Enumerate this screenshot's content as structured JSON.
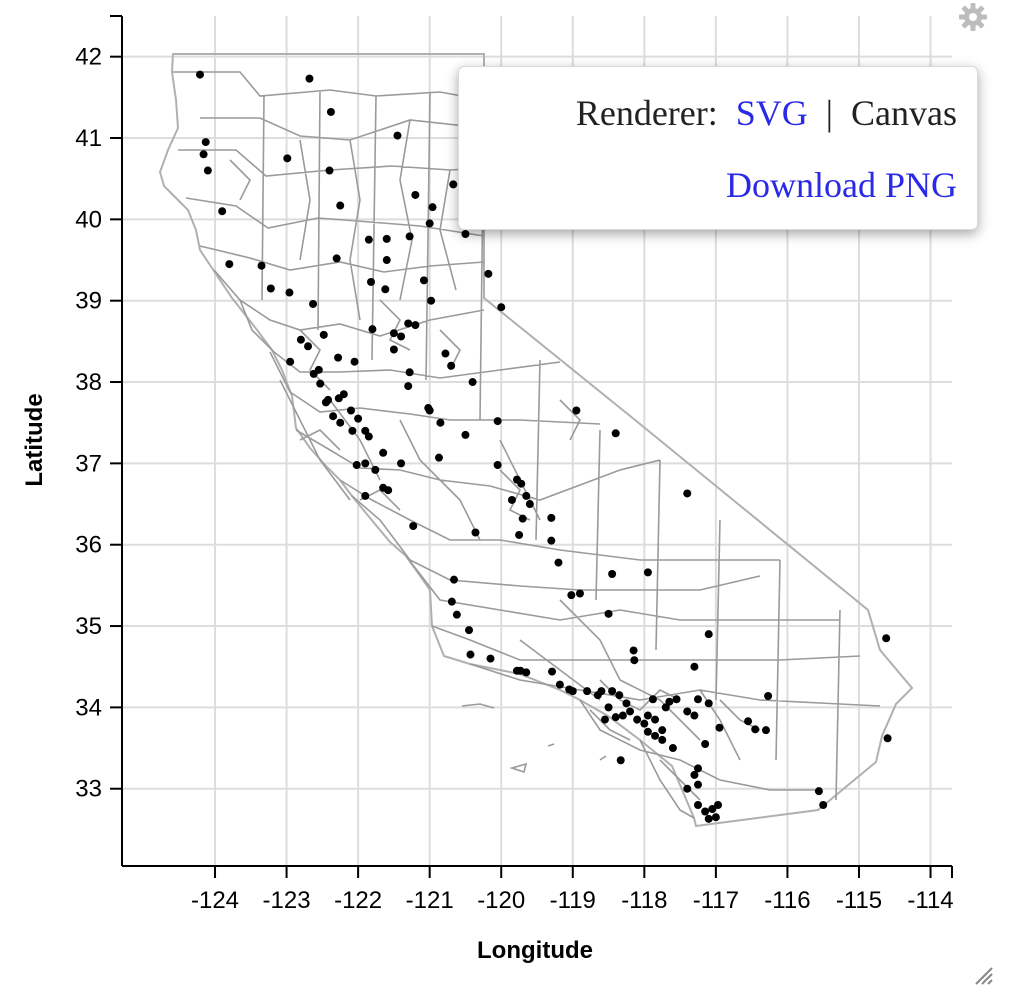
{
  "chart_data": {
    "type": "scatter",
    "xlabel": "Longitude",
    "ylabel": "Latitude",
    "xlim": [
      -125.3,
      -113.7
    ],
    "ylim": [
      32.05,
      42.5
    ],
    "x_ticks": [
      -124,
      -123,
      -122,
      -121,
      -120,
      -119,
      -118,
      -117,
      -116,
      -115,
      -114
    ],
    "y_ticks": [
      33,
      34,
      35,
      36,
      37,
      38,
      39,
      40,
      41,
      42
    ],
    "grid": true,
    "background_map": "California county boundaries",
    "points": [
      [
        -124.21,
        41.78
      ],
      [
        -124.13,
        40.95
      ],
      [
        -124.16,
        40.8
      ],
      [
        -124.1,
        40.6
      ],
      [
        -123.9,
        40.1
      ],
      [
        -122.68,
        41.73
      ],
      [
        -122.38,
        41.32
      ],
      [
        -121.45,
        41.03
      ],
      [
        -120.54,
        41.48
      ],
      [
        -122.99,
        40.75
      ],
      [
        -122.4,
        40.6
      ],
      [
        -122.25,
        40.17
      ],
      [
        -121.2,
        40.3
      ],
      [
        -120.96,
        40.15
      ],
      [
        -120.67,
        40.43
      ],
      [
        -121.0,
        39.95
      ],
      [
        -120.5,
        39.82
      ],
      [
        -121.85,
        39.75
      ],
      [
        -121.6,
        39.76
      ],
      [
        -121.28,
        39.79
      ],
      [
        -123.35,
        39.43
      ],
      [
        -123.8,
        39.45
      ],
      [
        -123.22,
        39.15
      ],
      [
        -122.96,
        39.1
      ],
      [
        -122.3,
        39.52
      ],
      [
        -121.6,
        39.5
      ],
      [
        -121.82,
        39.23
      ],
      [
        -121.62,
        39.14
      ],
      [
        -121.08,
        39.25
      ],
      [
        -120.98,
        39.0
      ],
      [
        -120.18,
        39.33
      ],
      [
        -120.0,
        38.92
      ],
      [
        -122.63,
        38.96
      ],
      [
        -122.48,
        38.58
      ],
      [
        -122.8,
        38.52
      ],
      [
        -122.7,
        38.44
      ],
      [
        -122.28,
        38.3
      ],
      [
        -122.05,
        38.25
      ],
      [
        -121.8,
        38.65
      ],
      [
        -121.5,
        38.6
      ],
      [
        -121.3,
        38.72
      ],
      [
        -121.2,
        38.7
      ],
      [
        -121.4,
        38.56
      ],
      [
        -121.5,
        38.4
      ],
      [
        -121.28,
        38.12
      ],
      [
        -120.78,
        38.35
      ],
      [
        -120.7,
        38.2
      ],
      [
        -120.4,
        38.0
      ],
      [
        -122.95,
        38.25
      ],
      [
        -122.62,
        38.1
      ],
      [
        -122.53,
        37.98
      ],
      [
        -122.45,
        37.75
      ],
      [
        -122.42,
        37.78
      ],
      [
        -122.2,
        37.85
      ],
      [
        -122.27,
        37.8
      ],
      [
        -122.1,
        37.65
      ],
      [
        -122.0,
        37.55
      ],
      [
        -121.9,
        37.4
      ],
      [
        -122.08,
        37.4
      ],
      [
        -122.25,
        37.5
      ],
      [
        -122.35,
        37.58
      ],
      [
        -121.85,
        37.33
      ],
      [
        -121.65,
        37.13
      ],
      [
        -121.4,
        37.0
      ],
      [
        -121.9,
        37.0
      ],
      [
        -122.02,
        36.98
      ],
      [
        -121.76,
        36.92
      ],
      [
        -121.58,
        36.67
      ],
      [
        -121.9,
        36.6
      ],
      [
        -121.65,
        36.7
      ],
      [
        -121.23,
        36.23
      ],
      [
        -122.55,
        38.15
      ],
      [
        -121.3,
        37.95
      ],
      [
        -121.0,
        37.65
      ],
      [
        -120.85,
        37.5
      ],
      [
        -121.02,
        37.68
      ],
      [
        -120.5,
        37.35
      ],
      [
        -120.05,
        37.52
      ],
      [
        -120.87,
        37.07
      ],
      [
        -120.05,
        36.98
      ],
      [
        -119.78,
        36.8
      ],
      [
        -119.72,
        36.75
      ],
      [
        -119.65,
        36.6
      ],
      [
        -119.85,
        36.55
      ],
      [
        -119.6,
        36.5
      ],
      [
        -119.3,
        36.33
      ],
      [
        -119.7,
        36.32
      ],
      [
        -119.75,
        36.12
      ],
      [
        -119.3,
        36.05
      ],
      [
        -120.36,
        36.15
      ],
      [
        -118.95,
        37.65
      ],
      [
        -118.4,
        37.37
      ],
      [
        -117.4,
        36.63
      ],
      [
        -120.66,
        35.57
      ],
      [
        -120.69,
        35.3
      ],
      [
        -120.62,
        35.14
      ],
      [
        -120.45,
        34.95
      ],
      [
        -120.43,
        34.65
      ],
      [
        -119.65,
        34.43
      ],
      [
        -119.73,
        34.45
      ],
      [
        -119.78,
        34.45
      ],
      [
        -120.15,
        34.6
      ],
      [
        -119.2,
        35.78
      ],
      [
        -119.02,
        35.38
      ],
      [
        -118.9,
        35.4
      ],
      [
        -118.45,
        35.64
      ],
      [
        -117.95,
        35.66
      ],
      [
        -118.5,
        35.15
      ],
      [
        -117.1,
        34.9
      ],
      [
        -118.15,
        34.7
      ],
      [
        -118.14,
        34.58
      ],
      [
        -119.29,
        34.44
      ],
      [
        -119.18,
        34.28
      ],
      [
        -119.05,
        34.22
      ],
      [
        -118.8,
        34.2
      ],
      [
        -118.6,
        34.2
      ],
      [
        -118.45,
        34.2
      ],
      [
        -118.35,
        34.15
      ],
      [
        -118.25,
        34.05
      ],
      [
        -118.2,
        33.95
      ],
      [
        -118.3,
        33.9
      ],
      [
        -118.1,
        33.85
      ],
      [
        -118.0,
        33.8
      ],
      [
        -117.95,
        33.7
      ],
      [
        -117.85,
        33.65
      ],
      [
        -117.75,
        33.6
      ],
      [
        -117.6,
        33.5
      ],
      [
        -117.4,
        33.95
      ],
      [
        -117.25,
        34.1
      ],
      [
        -117.1,
        34.05
      ],
      [
        -117.3,
        33.9
      ],
      [
        -116.55,
        33.83
      ],
      [
        -116.3,
        33.72
      ],
      [
        -116.45,
        33.73
      ],
      [
        -116.95,
        33.75
      ],
      [
        -117.15,
        33.55
      ],
      [
        -117.25,
        33.25
      ],
      [
        -117.3,
        33.17
      ],
      [
        -117.25,
        33.05
      ],
      [
        -117.15,
        32.72
      ],
      [
        -117.05,
        32.75
      ],
      [
        -117.1,
        32.63
      ],
      [
        -116.97,
        32.8
      ],
      [
        -117.0,
        32.65
      ],
      [
        -117.25,
        32.8
      ],
      [
        -117.4,
        33.0
      ],
      [
        -116.27,
        34.14
      ],
      [
        -115.56,
        32.97
      ],
      [
        -115.5,
        32.8
      ],
      [
        -114.62,
        34.85
      ],
      [
        -114.6,
        33.62
      ],
      [
        -118.33,
        33.35
      ],
      [
        -117.88,
        34.1
      ],
      [
        -117.65,
        34.07
      ],
      [
        -117.55,
        34.1
      ],
      [
        -117.95,
        33.9
      ],
      [
        -117.85,
        33.85
      ],
      [
        -117.75,
        33.72
      ],
      [
        -117.7,
        34.0
      ],
      [
        -117.3,
        34.5
      ],
      [
        -118.55,
        33.85
      ],
      [
        -118.4,
        33.88
      ],
      [
        -118.5,
        34.0
      ],
      [
        -118.65,
        34.15
      ],
      [
        -119.0,
        34.2
      ]
    ]
  },
  "popup": {
    "renderer_label": "Renderer:",
    "svg_label": "SVG",
    "separator": "|",
    "canvas_label": "Canvas",
    "download_label": "Download PNG"
  },
  "icons": {
    "gear": "gear-icon",
    "resize": "resize-handle-icon"
  },
  "colors": {
    "points": "#000000",
    "county_lines": "#9a9a9a",
    "grid": "#dddddd",
    "link": "#2a2ae6"
  }
}
